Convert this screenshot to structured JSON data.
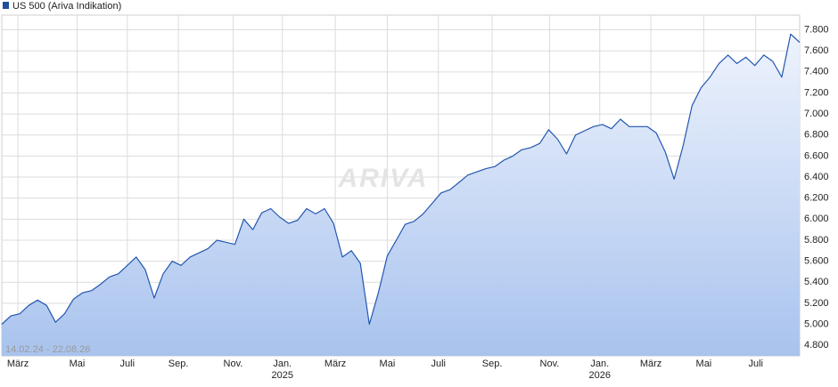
{
  "chart_data": {
    "type": "area",
    "legend_label": "US 500 (Ariva Indikation)",
    "range_label": "14.02.24 - 22.08.26",
    "watermark": "ARIVA",
    "color": "#2457b0",
    "grid": true,
    "values": [
      5000,
      5080,
      5100,
      5180,
      5230,
      5180,
      5020,
      5100,
      5240,
      5300,
      5320,
      5380,
      5450,
      5480,
      5560,
      5640,
      5520,
      5250,
      5480,
      5600,
      5560,
      5640,
      5680,
      5720,
      5800,
      5780,
      5760,
      6000,
      5900,
      6060,
      6100,
      6020,
      5960,
      5990,
      6100,
      6050,
      6100,
      5960,
      5640,
      5700,
      5580,
      5000,
      5300,
      5650,
      5800,
      5950,
      5980,
      6050,
      6150,
      6250,
      6280,
      6350,
      6420,
      6450,
      6480,
      6500,
      6560,
      6600,
      6660,
      6680,
      6720,
      6850,
      6760,
      6620,
      6800,
      6840,
      6880,
      6900,
      6860,
      6950,
      6880,
      6880,
      6880,
      6820,
      6640,
      6380,
      6700,
      7080,
      7250,
      7350,
      7480,
      7560,
      7480,
      7540,
      7460,
      7560,
      7500,
      7350,
      7760,
      7680
    ],
    "xlim": [
      0,
      89
    ],
    "xticks": [
      {
        "value": 1.8,
        "label": "März"
      },
      {
        "value": 8.4,
        "label": "Mai"
      },
      {
        "value": 14,
        "label": "Juli"
      },
      {
        "value": 19.7,
        "label": "Sep."
      },
      {
        "value": 25.8,
        "label": "Nov."
      },
      {
        "value": 31.3,
        "label": "Jan."
      },
      {
        "value": 37.2,
        "label": "März"
      },
      {
        "value": 43,
        "label": "Mai"
      },
      {
        "value": 48.7,
        "label": "Juli"
      },
      {
        "value": 54.7,
        "label": "Sep."
      },
      {
        "value": 61.1,
        "label": "Nov."
      },
      {
        "value": 66.7,
        "label": "Jan."
      },
      {
        "value": 72.4,
        "label": "März"
      },
      {
        "value": 78.3,
        "label": "Mai"
      },
      {
        "value": 84.1,
        "label": "Juli"
      }
    ],
    "year_labels": [
      {
        "value": 31.3,
        "label": "2025"
      },
      {
        "value": 66.7,
        "label": "2026"
      }
    ],
    "ylim": [
      4700,
      7940
    ],
    "yticks": [
      {
        "value": 4800,
        "label": "4.800"
      },
      {
        "value": 5000,
        "label": "5.000"
      },
      {
        "value": 5200,
        "label": "5.200"
      },
      {
        "value": 5400,
        "label": "5.400"
      },
      {
        "value": 5600,
        "label": "5.600"
      },
      {
        "value": 5800,
        "label": "5.800"
      },
      {
        "value": 6000,
        "label": "6.000"
      },
      {
        "value": 6200,
        "label": "6.200"
      },
      {
        "value": 6400,
        "label": "6.400"
      },
      {
        "value": 6600,
        "label": "6.600"
      },
      {
        "value": 6800,
        "label": "6.800"
      },
      {
        "value": 7000,
        "label": "7.000"
      },
      {
        "value": 7200,
        "label": "7.200"
      },
      {
        "value": 7400,
        "label": "7.400"
      },
      {
        "value": 7600,
        "label": "7.600"
      },
      {
        "value": 7800,
        "label": "7.800"
      }
    ]
  }
}
